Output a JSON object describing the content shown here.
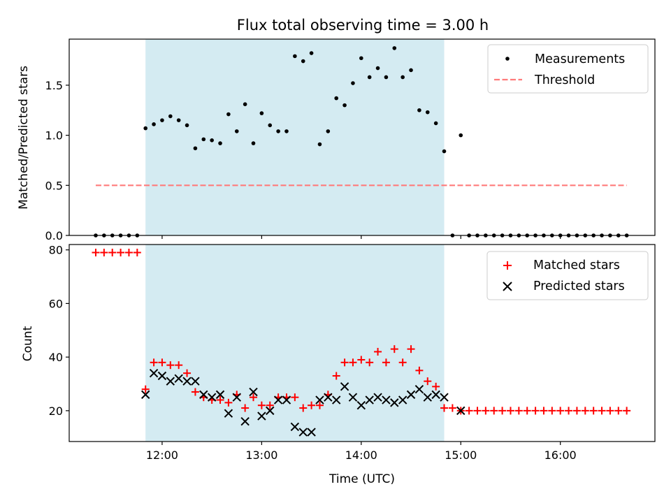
{
  "colors": {
    "shade": "#add8e6",
    "threshold": "#ff7b7b",
    "measurement": "#000000",
    "matched": "#ff0000",
    "predicted": "#000000"
  },
  "chart_data": [
    {
      "type": "scatter",
      "title": "Flux total observing time = 3.00 h",
      "xlabel": "",
      "ylabel": "Matched/Predicted stars",
      "ylim": [
        0,
        1.96
      ],
      "yticks": [
        0.0,
        0.5,
        1.0,
        1.5
      ],
      "yticklabels": [
        "0.0",
        "0.5",
        "1.0",
        "1.5"
      ],
      "xlim": [
        "11:04",
        "16:57"
      ],
      "xticks": [
        "12:00",
        "13:00",
        "14:00",
        "15:00",
        "16:00"
      ],
      "shaded_span": [
        "11:50",
        "14:50"
      ],
      "legend": {
        "location": "top-right",
        "entries": [
          "Measurements",
          "Threshold"
        ]
      },
      "threshold": {
        "name": "Threshold",
        "value": 0.5,
        "x": [
          "11:20",
          "16:40"
        ],
        "style": "dashed"
      },
      "measurements": {
        "name": "Measurements",
        "x": [
          "11:20",
          "11:25",
          "11:30",
          "11:35",
          "11:40",
          "11:45",
          "11:50",
          "11:55",
          "12:00",
          "12:05",
          "12:10",
          "12:15",
          "12:20",
          "12:25",
          "12:30",
          "12:35",
          "12:40",
          "12:45",
          "12:50",
          "12:55",
          "13:00",
          "13:05",
          "13:10",
          "13:15",
          "13:20",
          "13:25",
          "13:30",
          "13:35",
          "13:40",
          "13:45",
          "13:50",
          "13:55",
          "14:00",
          "14:05",
          "14:10",
          "14:15",
          "14:20",
          "14:25",
          "14:30",
          "14:35",
          "14:40",
          "14:45",
          "14:50",
          "14:55",
          "15:00",
          "15:05",
          "15:10",
          "15:15",
          "15:20",
          "15:25",
          "15:30",
          "15:35",
          "15:40",
          "15:45",
          "15:50",
          "15:55",
          "16:00",
          "16:05",
          "16:10",
          "16:15",
          "16:20",
          "16:25",
          "16:30",
          "16:35",
          "16:40"
        ],
        "y": [
          0,
          0,
          0,
          0,
          0,
          0,
          1.07,
          1.11,
          1.15,
          1.19,
          1.15,
          1.1,
          0.87,
          0.96,
          0.95,
          0.92,
          1.21,
          1.04,
          1.31,
          0.92,
          1.22,
          1.1,
          1.04,
          1.04,
          1.79,
          1.74,
          1.82,
          0.91,
          1.04,
          1.37,
          1.3,
          1.52,
          1.77,
          1.58,
          1.67,
          1.58,
          1.87,
          1.58,
          1.65,
          1.25,
          1.23,
          1.12,
          0.84,
          0,
          1.0,
          0,
          0,
          0,
          0,
          0,
          0,
          0,
          0,
          0,
          0,
          0,
          0,
          0,
          0,
          0,
          0,
          0,
          0,
          0,
          0
        ]
      }
    },
    {
      "type": "scatter",
      "title": "",
      "xlabel": "Time (UTC)",
      "ylabel": "Count",
      "ylim": [
        8.5,
        82
      ],
      "yticks": [
        20,
        40,
        60,
        80
      ],
      "yticklabels": [
        "20",
        "40",
        "60",
        "80"
      ],
      "xlim": [
        "11:04",
        "16:57"
      ],
      "xticks": [
        "12:00",
        "13:00",
        "14:00",
        "15:00",
        "16:00"
      ],
      "xticklabels": [
        "12:00",
        "13:00",
        "14:00",
        "15:00",
        "16:00"
      ],
      "shaded_span": [
        "11:50",
        "14:50"
      ],
      "legend": {
        "location": "top-right",
        "entries": [
          "Matched stars",
          "Predicted stars"
        ]
      },
      "series": [
        {
          "name": "Matched stars",
          "marker": "+",
          "x": [
            "11:20",
            "11:25",
            "11:30",
            "11:35",
            "11:40",
            "11:45",
            "11:50",
            "11:55",
            "12:00",
            "12:05",
            "12:10",
            "12:15",
            "12:20",
            "12:25",
            "12:30",
            "12:35",
            "12:40",
            "12:45",
            "12:50",
            "12:55",
            "13:00",
            "13:05",
            "13:10",
            "13:15",
            "13:20",
            "13:25",
            "13:30",
            "13:35",
            "13:40",
            "13:45",
            "13:50",
            "13:55",
            "14:00",
            "14:05",
            "14:10",
            "14:15",
            "14:20",
            "14:25",
            "14:30",
            "14:35",
            "14:40",
            "14:45",
            "14:50",
            "14:55",
            "15:00",
            "15:05",
            "15:10",
            "15:15",
            "15:20",
            "15:25",
            "15:30",
            "15:35",
            "15:40",
            "15:45",
            "15:50",
            "15:55",
            "16:00",
            "16:05",
            "16:10",
            "16:15",
            "16:20",
            "16:25",
            "16:30",
            "16:35",
            "16:40"
          ],
          "y": [
            79,
            79,
            79,
            79,
            79,
            79,
            28,
            38,
            38,
            37,
            37,
            34,
            27,
            25,
            24,
            24,
            23,
            26,
            21,
            25,
            22,
            22,
            25,
            25,
            25,
            21,
            22,
            22,
            26,
            33,
            38,
            38,
            39,
            38,
            42,
            38,
            43,
            38,
            43,
            35,
            31,
            29,
            21,
            21,
            20,
            20,
            20,
            20,
            20,
            20,
            20,
            20,
            20,
            20,
            20,
            20,
            20,
            20,
            20,
            20,
            20,
            20,
            20,
            20,
            20
          ]
        },
        {
          "name": "Predicted stars",
          "marker": "x",
          "x": [
            "11:50",
            "11:55",
            "12:00",
            "12:05",
            "12:10",
            "12:15",
            "12:20",
            "12:25",
            "12:30",
            "12:35",
            "12:40",
            "12:45",
            "12:50",
            "12:55",
            "13:00",
            "13:05",
            "13:10",
            "13:15",
            "13:20",
            "13:25",
            "13:30",
            "13:35",
            "13:40",
            "13:45",
            "13:50",
            "13:55",
            "14:00",
            "14:05",
            "14:10",
            "14:15",
            "14:20",
            "14:25",
            "14:30",
            "14:35",
            "14:40",
            "14:45",
            "14:50",
            "15:00"
          ],
          "y": [
            26,
            34,
            33,
            31,
            32,
            31,
            31,
            26,
            25,
            26,
            19,
            25,
            16,
            27,
            18,
            20,
            24,
            24,
            14,
            12,
            12,
            24,
            25,
            24,
            29,
            25,
            22,
            24,
            25,
            24,
            23,
            24,
            26,
            28,
            25,
            26,
            25,
            20
          ]
        }
      ]
    }
  ]
}
